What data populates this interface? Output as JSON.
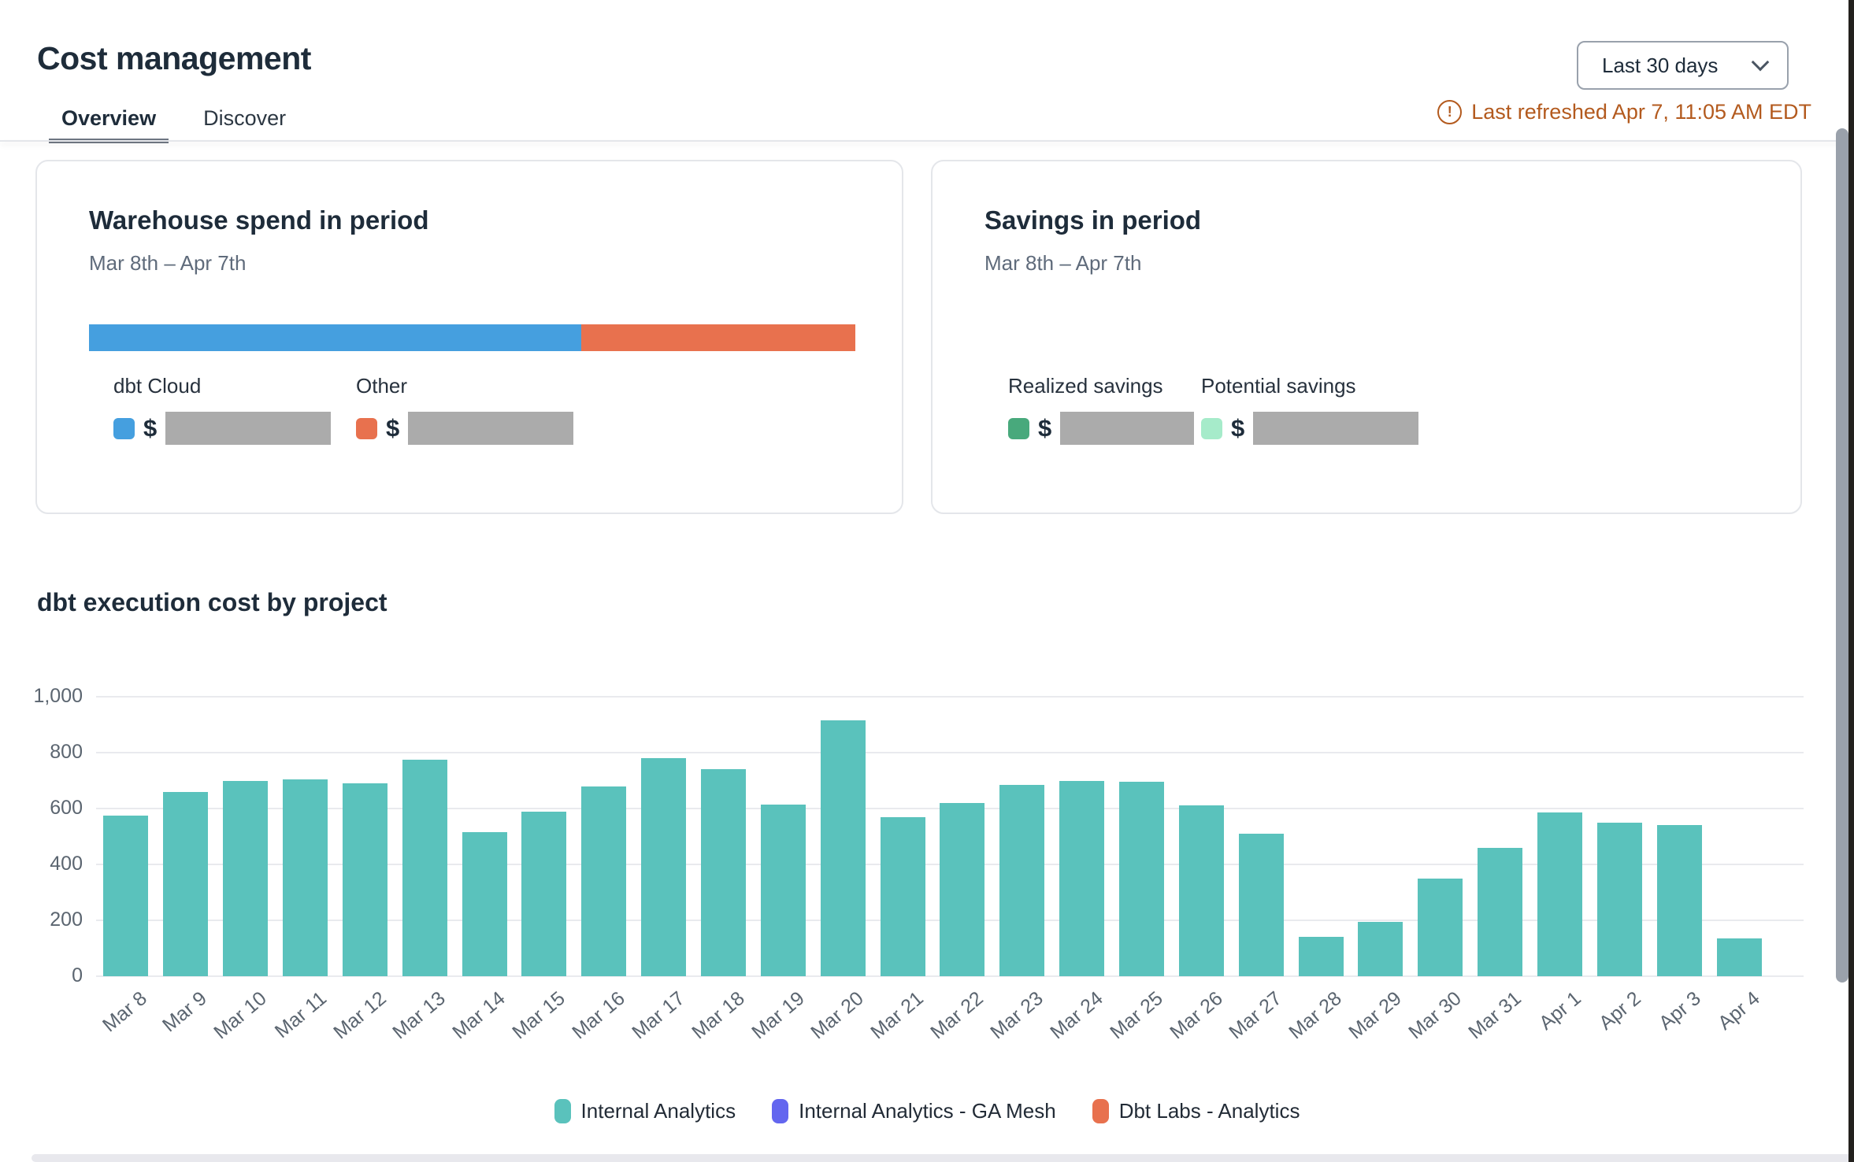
{
  "page": {
    "title": "Cost management"
  },
  "header": {
    "period_selector": {
      "value": "Last 30 days"
    },
    "last_refreshed": "Last refreshed Apr 7, 11:05 AM EDT"
  },
  "tabs": [
    {
      "label": "Overview",
      "active": true
    },
    {
      "label": "Discover",
      "active": false
    }
  ],
  "warehouse_card": {
    "title": "Warehouse spend in period",
    "period": "Mar 8th – Apr 7th",
    "spend_bar": {
      "segments": [
        {
          "label": "dbt Cloud",
          "color": "#459fdf",
          "width_pct": "64.2%"
        },
        {
          "label": "Other",
          "color": "#e8714e",
          "width_pct": "35.8%"
        }
      ]
    },
    "legend": [
      {
        "label": "dbt Cloud",
        "color": "#459fdf",
        "currency": "$",
        "value_redacted": true
      },
      {
        "label": "Other",
        "color": "#e8714e",
        "currency": "$",
        "value_redacted": true
      }
    ]
  },
  "savings_card": {
    "title": "Savings in period",
    "period": "Mar 8th – Apr 7th",
    "legend": [
      {
        "label": "Realized savings",
        "color": "#48a97c",
        "currency": "$",
        "value_redacted": true
      },
      {
        "label": "Potential savings",
        "color": "#a6ebca",
        "currency": "$",
        "value_redacted": true
      }
    ]
  },
  "chart_data": {
    "type": "bar",
    "title": "dbt execution cost by project",
    "categories": [
      "Mar 8",
      "Mar 9",
      "Mar 10",
      "Mar 11",
      "Mar 12",
      "Mar 13",
      "Mar 14",
      "Mar 15",
      "Mar 16",
      "Mar 17",
      "Mar 18",
      "Mar 19",
      "Mar 20",
      "Mar 21",
      "Mar 22",
      "Mar 23",
      "Mar 24",
      "Mar 25",
      "Mar 26",
      "Mar 27",
      "Mar 28",
      "Mar 29",
      "Mar 30",
      "Mar 31",
      "Apr 1",
      "Apr 2",
      "Apr 3",
      "Apr 4"
    ],
    "series": [
      {
        "name": "Internal Analytics",
        "color": "#5ac2bc",
        "values": [
          575,
          660,
          700,
          705,
          690,
          775,
          515,
          590,
          680,
          780,
          740,
          615,
          915,
          570,
          620,
          685,
          700,
          695,
          610,
          510,
          140,
          195,
          350,
          460,
          585,
          550,
          540,
          135
        ]
      },
      {
        "name": "Internal Analytics - GA Mesh",
        "color": "#6366ef",
        "values": [
          0,
          0,
          0,
          0,
          0,
          0,
          0,
          0,
          0,
          0,
          0,
          0,
          0,
          0,
          0,
          0,
          0,
          0,
          0,
          0,
          0,
          0,
          0,
          0,
          0,
          0,
          0,
          0
        ]
      },
      {
        "name": "Dbt Labs - Analytics",
        "color": "#e8714e",
        "values": [
          0,
          0,
          0,
          0,
          0,
          0,
          0,
          0,
          0,
          0,
          0,
          0,
          0,
          0,
          0,
          0,
          0,
          0,
          0,
          0,
          0,
          0,
          0,
          0,
          0,
          0,
          0,
          0
        ]
      }
    ],
    "xlabel": "",
    "ylabel": "",
    "ylim": [
      0,
      1000
    ],
    "yticks": [
      {
        "value": 0,
        "label": "0"
      },
      {
        "value": 200,
        "label": "200"
      },
      {
        "value": 400,
        "label": "400"
      },
      {
        "value": 600,
        "label": "600"
      },
      {
        "value": 800,
        "label": "800"
      },
      {
        "value": 1000,
        "label": "1,000"
      }
    ],
    "grid": true,
    "legend_position": "bottom"
  },
  "colors": {
    "redacted": "#ababab"
  }
}
